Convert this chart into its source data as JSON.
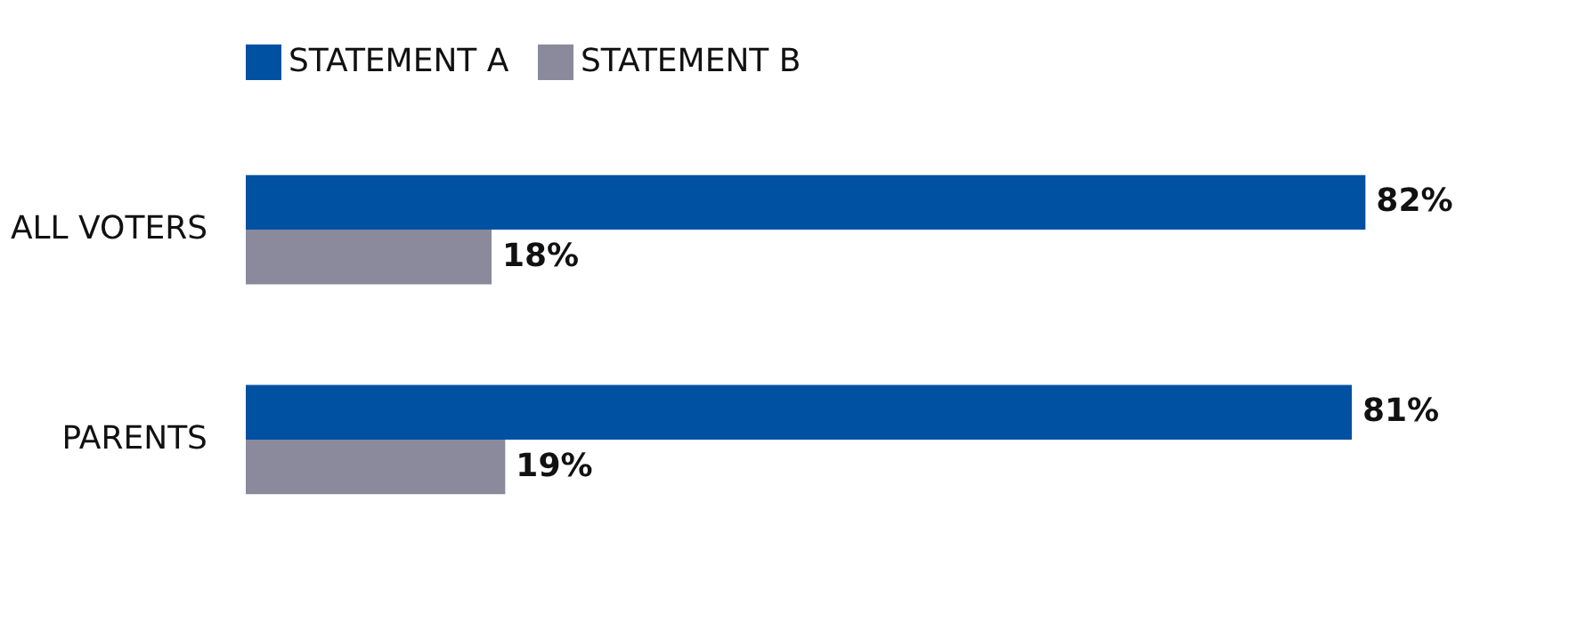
{
  "chart_data": {
    "type": "bar",
    "orientation": "horizontal",
    "categories": [
      "ALL VOTERS",
      "PARENTS"
    ],
    "series": [
      {
        "name": "STATEMENT A",
        "color": "#0051a2",
        "values": [
          82,
          81
        ],
        "value_labels": [
          "82%",
          "81%"
        ]
      },
      {
        "name": "STATEMENT B",
        "color": "#8a8a9c",
        "values": [
          18,
          19
        ],
        "value_labels": [
          "18%",
          "19%"
        ]
      }
    ],
    "legend": "top",
    "grid": false
  }
}
